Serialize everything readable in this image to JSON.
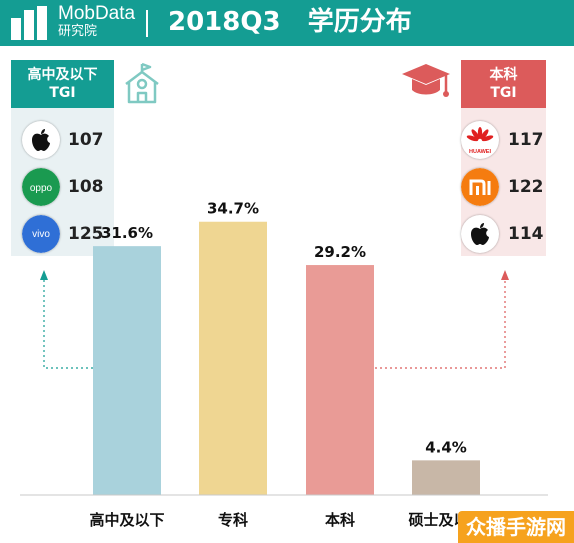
{
  "header": {
    "brand": "MobData",
    "brand_sub": "研究院",
    "title": "2018Q3   学历分布",
    "bg_color": "#149d93"
  },
  "left_panel": {
    "label_lines": [
      "高中及以下",
      "TGI"
    ],
    "color": "#149d93",
    "icon": "school-building-icon",
    "items": [
      {
        "brand_icon": "apple-logo-icon",
        "tgi": "107"
      },
      {
        "brand_icon": "oppo-logo-icon",
        "tgi": "108"
      },
      {
        "brand_icon": "vivo-logo-icon",
        "tgi": "125"
      }
    ]
  },
  "right_panel": {
    "label_lines": [
      "本科",
      "TGI"
    ],
    "color": "#dc5b5b",
    "icon": "graduation-cap-icon",
    "items": [
      {
        "brand_icon": "huawei-logo-icon",
        "tgi": "117"
      },
      {
        "brand_icon": "mi-logo-icon",
        "tgi": "122"
      },
      {
        "brand_icon": "apple-logo-icon",
        "tgi": "114"
      }
    ]
  },
  "chart_data": {
    "type": "bar",
    "title": "2018Q3 学历分布",
    "categories": [
      "高中及以下",
      "专科",
      "本科",
      "硕士及以上"
    ],
    "values": [
      31.6,
      34.7,
      29.2,
      4.4
    ],
    "value_labels": [
      "31.6%",
      "34.7%",
      "29.2%",
      "4.4%"
    ],
    "colors": [
      "#a9d2dc",
      "#efd692",
      "#e99b96",
      "#c8b7a7"
    ],
    "ylim": [
      0,
      40
    ],
    "grid": false,
    "legend": "none"
  },
  "watermark": "众播手游网"
}
